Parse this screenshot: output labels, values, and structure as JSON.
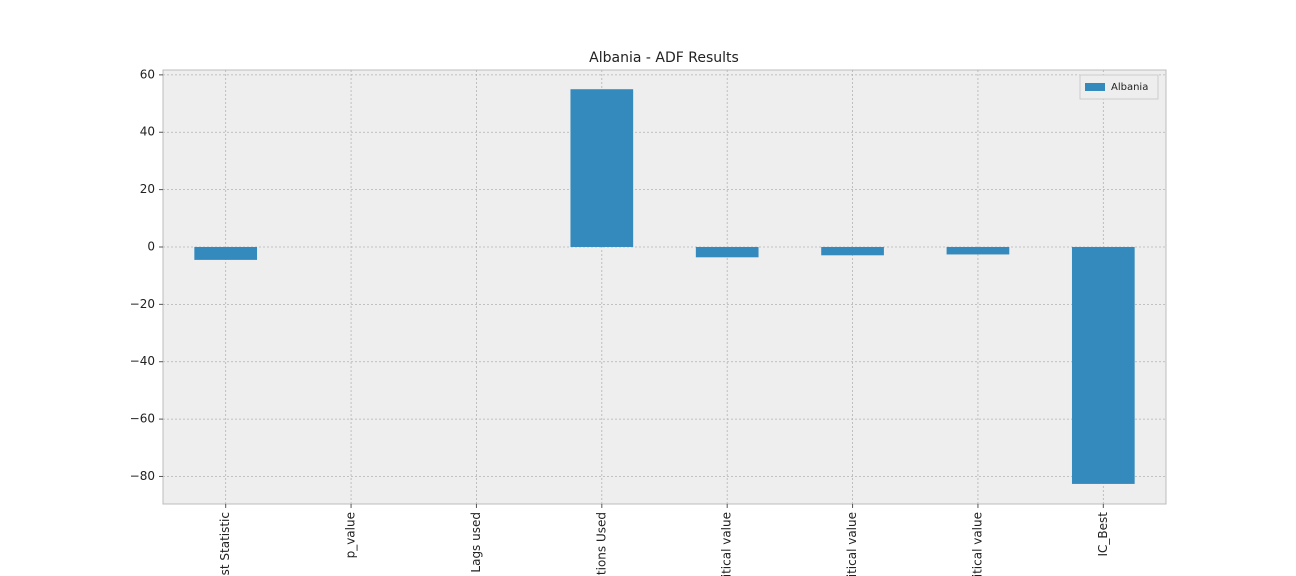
{
  "chart_data": {
    "type": "bar",
    "title": "Albania - ADF Results",
    "categories": [
      "est Statistic",
      "p_value",
      "Lags used",
      "ations Used",
      "ritical value",
      "ritical value",
      "ritical value",
      "IC_Best"
    ],
    "series": [
      {
        "name": "Albania",
        "color": "#348abd",
        "values": [
          -4.5,
          0.0004,
          0,
          55,
          -3.6,
          -2.9,
          -2.6,
          -82.6
        ]
      }
    ],
    "ylim": [
      -89.6,
      61.7
    ],
    "yticks": [
      {
        "value": -80,
        "label": "−80"
      },
      {
        "value": -60,
        "label": "−60"
      },
      {
        "value": -40,
        "label": "−40"
      },
      {
        "value": -20,
        "label": "−20"
      },
      0,
      20,
      40,
      60
    ],
    "grid": true,
    "legend": "upper right"
  }
}
